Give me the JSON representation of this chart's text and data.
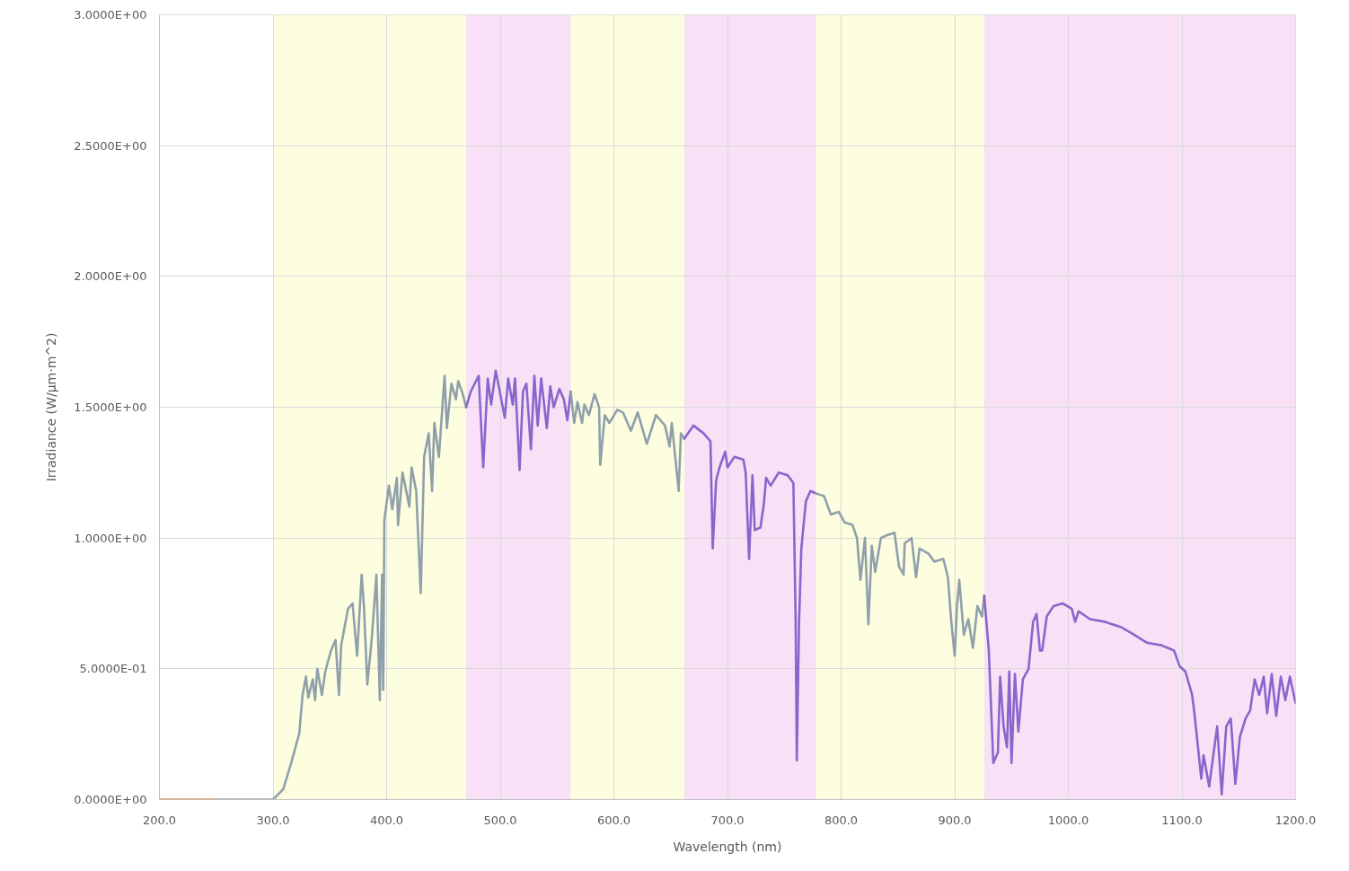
{
  "chart_data": {
    "type": "line",
    "xlabel": "Wavelength (nm)",
    "ylabel": "Irradiance (W/µm·m^2)",
    "xlim": [
      200,
      1200
    ],
    "ylim": [
      0,
      3
    ],
    "xticks": [
      {
        "value": 200,
        "label": "200.0"
      },
      {
        "value": 300,
        "label": "300.0"
      },
      {
        "value": 400,
        "label": "400.0"
      },
      {
        "value": 500,
        "label": "500.0"
      },
      {
        "value": 600,
        "label": "600.0"
      },
      {
        "value": 700,
        "label": "700.0"
      },
      {
        "value": 800,
        "label": "800.0"
      },
      {
        "value": 900,
        "label": "900.0"
      },
      {
        "value": 1000,
        "label": "1000.0"
      },
      {
        "value": 1100,
        "label": "1100.0"
      },
      {
        "value": 1200,
        "label": "1200.0"
      }
    ],
    "yticks": [
      {
        "value": 0,
        "label": "0.0000E+00"
      },
      {
        "value": 0.5,
        "label": "5.0000E-01"
      },
      {
        "value": 1,
        "label": "1.0000E+00"
      },
      {
        "value": 1.5,
        "label": "1.5000E+00"
      },
      {
        "value": 2,
        "label": "2.0000E+00"
      },
      {
        "value": 2.5,
        "label": "2.5000E+00"
      },
      {
        "value": 3,
        "label": "3.0000E+00"
      }
    ],
    "grid": true,
    "bands": [
      {
        "axis": "x",
        "from": 300,
        "to": 470,
        "color": "#fdfde0"
      },
      {
        "axis": "x",
        "from": 470,
        "to": 562,
        "color": "#f8e1f6"
      },
      {
        "axis": "x",
        "from": 562,
        "to": 662,
        "color": "#fdfde0"
      },
      {
        "axis": "x",
        "from": 662,
        "to": 778,
        "color": "#f8e1f6"
      },
      {
        "axis": "x",
        "from": 778,
        "to": 926,
        "color": "#fdfde0"
      },
      {
        "axis": "x",
        "from": 926,
        "to": 1200,
        "color": "#f8e1f6"
      }
    ],
    "series": [
      {
        "color": "#f28c50",
        "x": [
          200,
          250
        ],
        "values": [
          0,
          0
        ]
      },
      {
        "color": "#8fa0ab",
        "x": [
          250,
          300,
          309,
          316,
          321,
          323,
          326,
          329,
          331,
          335,
          337,
          339,
          343,
          346,
          351,
          355,
          358,
          360,
          366,
          370,
          374,
          378,
          380,
          383,
          387,
          391,
          394,
          396,
          397,
          398,
          402,
          405,
          409,
          410,
          414,
          420,
          422,
          426,
          430,
          433,
          437,
          440,
          442,
          446,
          451,
          453,
          457,
          461,
          463,
          467,
          470
        ],
        "values": [
          0,
          0,
          0.04,
          0.14,
          0.22,
          0.25,
          0.4,
          0.47,
          0.39,
          0.46,
          0.38,
          0.5,
          0.4,
          0.49,
          0.57,
          0.61,
          0.4,
          0.59,
          0.73,
          0.75,
          0.55,
          0.86,
          0.74,
          0.44,
          0.62,
          0.86,
          0.38,
          0.86,
          0.42,
          1.07,
          1.2,
          1.11,
          1.23,
          1.05,
          1.25,
          1.12,
          1.27,
          1.18,
          0.79,
          1.31,
          1.4,
          1.18,
          1.44,
          1.31,
          1.62,
          1.42,
          1.59,
          1.53,
          1.6,
          1.55,
          1.5
        ]
      },
      {
        "color": "#8866cc",
        "x": [
          470,
          474,
          481,
          485,
          489,
          492,
          496,
          500,
          504,
          507,
          511,
          513,
          517,
          520,
          523,
          527,
          530,
          533,
          536,
          541,
          544,
          547,
          552,
          556,
          559,
          562
        ],
        "values": [
          1.5,
          1.56,
          1.62,
          1.27,
          1.61,
          1.51,
          1.64,
          1.55,
          1.46,
          1.61,
          1.51,
          1.61,
          1.26,
          1.56,
          1.59,
          1.34,
          1.62,
          1.43,
          1.61,
          1.42,
          1.58,
          1.5,
          1.57,
          1.53,
          1.45,
          1.56
        ]
      },
      {
        "color": "#8fa0ab",
        "x": [
          562,
          565,
          568,
          572,
          574,
          578,
          583,
          587,
          588,
          592,
          596,
          603,
          608,
          615,
          621,
          629,
          637,
          645,
          649,
          651,
          657,
          659,
          662
        ],
        "values": [
          1.56,
          1.44,
          1.52,
          1.44,
          1.51,
          1.47,
          1.55,
          1.5,
          1.28,
          1.47,
          1.44,
          1.49,
          1.48,
          1.41,
          1.48,
          1.36,
          1.47,
          1.43,
          1.35,
          1.44,
          1.18,
          1.4,
          1.38
        ]
      },
      {
        "color": "#8866cc",
        "x": [
          662,
          670,
          679,
          685,
          687,
          690,
          693,
          698,
          700,
          706,
          714,
          716,
          719,
          722,
          724,
          729,
          732,
          734,
          738,
          745,
          753,
          758,
          760,
          761,
          763,
          765,
          769,
          773,
          778
        ],
        "values": [
          1.38,
          1.43,
          1.4,
          1.37,
          0.96,
          1.22,
          1.27,
          1.33,
          1.27,
          1.31,
          1.3,
          1.25,
          0.92,
          1.24,
          1.03,
          1.04,
          1.13,
          1.23,
          1.2,
          1.25,
          1.24,
          1.21,
          0.68,
          0.15,
          0.68,
          0.96,
          1.14,
          1.18,
          1.17
        ]
      },
      {
        "color": "#8fa0ab",
        "x": [
          778,
          785,
          791,
          798,
          803,
          810,
          814,
          817,
          821,
          824,
          827,
          830,
          835,
          840,
          847,
          851,
          855,
          856,
          862,
          866,
          869,
          877,
          882,
          890,
          894,
          897,
          900,
          902,
          904,
          908,
          912,
          916,
          920,
          924,
          926
        ],
        "values": [
          1.17,
          1.16,
          1.09,
          1.1,
          1.06,
          1.05,
          1.0,
          0.84,
          1.0,
          0.67,
          0.97,
          0.87,
          1.0,
          1.01,
          1.02,
          0.89,
          0.86,
          0.98,
          1.0,
          0.85,
          0.96,
          0.94,
          0.91,
          0.92,
          0.85,
          0.68,
          0.55,
          0.74,
          0.84,
          0.63,
          0.69,
          0.58,
          0.74,
          0.7,
          0.78
        ]
      },
      {
        "color": "#8866cc",
        "x": [
          926,
          930,
          934,
          938,
          940,
          943,
          946,
          948,
          950,
          953,
          956,
          960,
          965,
          969,
          972,
          975,
          977,
          981,
          987,
          995,
          1003,
          1006,
          1009,
          1019,
          1032,
          1046,
          1058,
          1069,
          1082,
          1093,
          1098,
          1103,
          1109,
          1111,
          1117,
          1119,
          1124,
          1127,
          1131,
          1135,
          1139,
          1143,
          1147,
          1151,
          1156,
          1160,
          1164,
          1168,
          1172,
          1175,
          1179,
          1183,
          1187,
          1191,
          1195,
          1200
        ],
        "values": [
          0.78,
          0.57,
          0.14,
          0.18,
          0.47,
          0.28,
          0.2,
          0.49,
          0.14,
          0.48,
          0.26,
          0.46,
          0.5,
          0.68,
          0.71,
          0.57,
          0.57,
          0.7,
          0.74,
          0.75,
          0.73,
          0.68,
          0.72,
          0.69,
          0.68,
          0.66,
          0.63,
          0.6,
          0.59,
          0.57,
          0.51,
          0.49,
          0.4,
          0.33,
          0.08,
          0.17,
          0.05,
          0.15,
          0.28,
          0.02,
          0.28,
          0.31,
          0.06,
          0.24,
          0.31,
          0.34,
          0.46,
          0.4,
          0.47,
          0.33,
          0.48,
          0.32,
          0.47,
          0.38,
          0.47,
          0.37
        ]
      }
    ]
  }
}
